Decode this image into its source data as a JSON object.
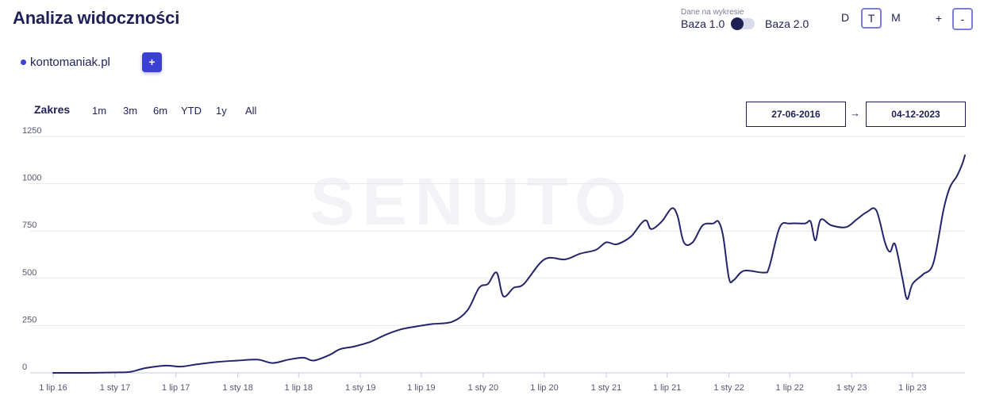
{
  "header": {
    "title": "Analiza widoczności",
    "base": {
      "caption": "Dane na wykresie",
      "left": "Baza 1.0",
      "right": "Baza 2.0"
    },
    "granularity": {
      "options": [
        "D",
        "T",
        "M"
      ],
      "selected": "T"
    },
    "zoom": {
      "plus": "+",
      "minus": "-"
    }
  },
  "domain": {
    "label": "kontomaniak.pl",
    "add_label": "+"
  },
  "range": {
    "title": "Zakres",
    "options": [
      "1m",
      "3m",
      "6m",
      "YTD",
      "1y",
      "All"
    ],
    "from": "27-06-2016",
    "arrow": "→",
    "to": "04-12-2023"
  },
  "colors": {
    "line": "#23246b",
    "accent": "#3b3fd6",
    "grid": "#e6e6ee"
  },
  "chart_data": {
    "type": "line",
    "watermark": "SENUTO",
    "y_ticks": [
      0,
      250,
      500,
      750,
      1000,
      1250
    ],
    "ylim": [
      0,
      1250
    ],
    "x_ticks": [
      "1 lip 16",
      "1 sty 17",
      "1 lip 17",
      "1 sty 18",
      "1 lip 18",
      "1 sty 19",
      "1 lip 19",
      "1 sty 20",
      "1 lip 20",
      "1 sty 21",
      "1 lip 21",
      "1 sty 22",
      "1 lip 22",
      "1 sty 23",
      "1 lip 23"
    ],
    "xlim": [
      "2016-07-01",
      "2023-12-04"
    ],
    "grid": true,
    "series": [
      {
        "values": [
          [
            "2016-07-01",
            0
          ],
          [
            "2016-10-01",
            0
          ],
          [
            "2017-01-01",
            2
          ],
          [
            "2017-02-15",
            5
          ],
          [
            "2017-04-01",
            25
          ],
          [
            "2017-06-01",
            38
          ],
          [
            "2017-07-15",
            33
          ],
          [
            "2017-09-01",
            45
          ],
          [
            "2017-11-01",
            58
          ],
          [
            "2018-01-01",
            65
          ],
          [
            "2018-03-01",
            70
          ],
          [
            "2018-04-15",
            52
          ],
          [
            "2018-06-01",
            70
          ],
          [
            "2018-07-15",
            80
          ],
          [
            "2018-08-15",
            65
          ],
          [
            "2018-10-01",
            95
          ],
          [
            "2018-11-01",
            125
          ],
          [
            "2018-12-15",
            140
          ],
          [
            "2019-02-01",
            165
          ],
          [
            "2019-03-15",
            200
          ],
          [
            "2019-05-01",
            230
          ],
          [
            "2019-06-15",
            245
          ],
          [
            "2019-08-01",
            258
          ],
          [
            "2019-10-01",
            270
          ],
          [
            "2019-11-15",
            330
          ],
          [
            "2019-12-20",
            450
          ],
          [
            "2020-01-15",
            470
          ],
          [
            "2020-02-10",
            530
          ],
          [
            "2020-03-01",
            405
          ],
          [
            "2020-04-01",
            450
          ],
          [
            "2020-05-01",
            470
          ],
          [
            "2020-07-01",
            600
          ],
          [
            "2020-09-01",
            600
          ],
          [
            "2020-10-15",
            630
          ],
          [
            "2020-12-01",
            650
          ],
          [
            "2021-01-01",
            690
          ],
          [
            "2021-02-01",
            680
          ],
          [
            "2021-03-15",
            720
          ],
          [
            "2021-04-15",
            790
          ],
          [
            "2021-05-01",
            805
          ],
          [
            "2021-05-15",
            760
          ],
          [
            "2021-06-15",
            800
          ],
          [
            "2021-07-15",
            870
          ],
          [
            "2021-08-01",
            830
          ],
          [
            "2021-08-20",
            690
          ],
          [
            "2021-09-15",
            690
          ],
          [
            "2021-10-15",
            780
          ],
          [
            "2021-11-15",
            790
          ],
          [
            "2021-12-01",
            800
          ],
          [
            "2021-12-15",
            720
          ],
          [
            "2022-01-01",
            500
          ],
          [
            "2022-01-15",
            490
          ],
          [
            "2022-02-15",
            540
          ],
          [
            "2022-04-15",
            530
          ],
          [
            "2022-05-01",
            560
          ],
          [
            "2022-06-01",
            770
          ],
          [
            "2022-07-01",
            790
          ],
          [
            "2022-08-15",
            790
          ],
          [
            "2022-09-01",
            800
          ],
          [
            "2022-09-15",
            700
          ],
          [
            "2022-10-01",
            810
          ],
          [
            "2022-11-01",
            780
          ],
          [
            "2022-12-15",
            770
          ],
          [
            "2023-01-15",
            810
          ],
          [
            "2023-02-15",
            850
          ],
          [
            "2023-03-15",
            860
          ],
          [
            "2023-04-10",
            690
          ],
          [
            "2023-04-25",
            640
          ],
          [
            "2023-05-10",
            680
          ],
          [
            "2023-06-01",
            500
          ],
          [
            "2023-06-15",
            390
          ],
          [
            "2023-07-01",
            470
          ],
          [
            "2023-08-01",
            520
          ],
          [
            "2023-09-01",
            580
          ],
          [
            "2023-10-01",
            860
          ],
          [
            "2023-10-20",
            980
          ],
          [
            "2023-11-10",
            1040
          ],
          [
            "2023-11-25",
            1100
          ],
          [
            "2023-12-04",
            1150
          ]
        ]
      }
    ]
  }
}
